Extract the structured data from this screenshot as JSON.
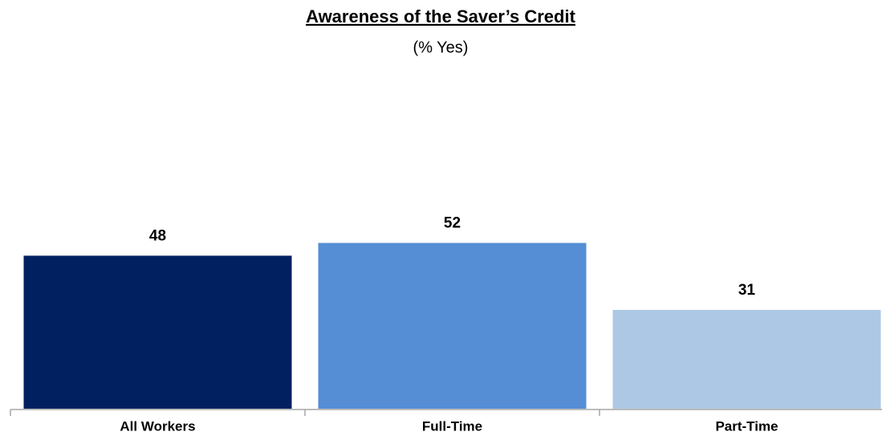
{
  "chart_data": {
    "type": "bar",
    "title": "Awareness of the Saver’s Credit",
    "subtitle": "(% Yes)",
    "categories": [
      "All Workers",
      "Full-Time",
      "Part-Time"
    ],
    "values": [
      48,
      52,
      31
    ],
    "colors": [
      "#002060",
      "#558ed5",
      "#adc8e4"
    ],
    "ylim": [
      0,
      100
    ]
  }
}
